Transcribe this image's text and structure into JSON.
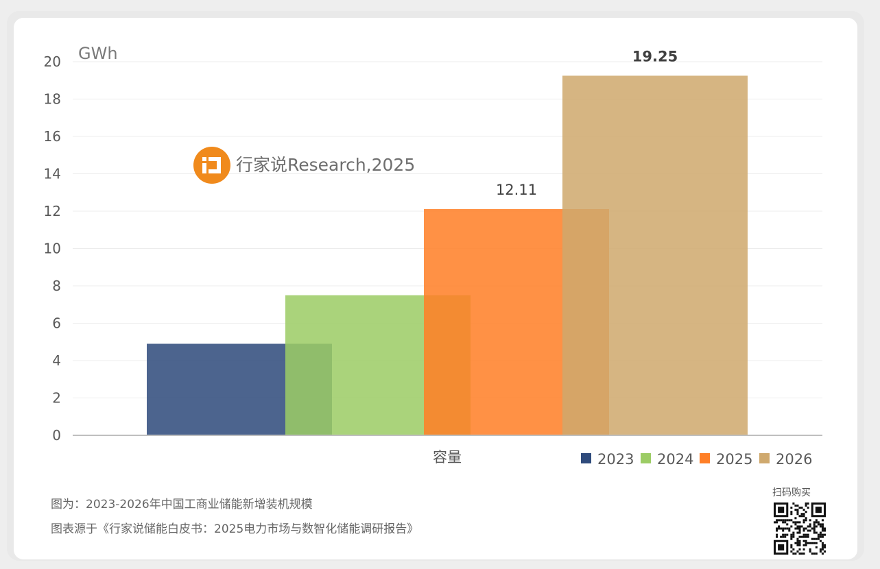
{
  "chart_data": {
    "type": "bar",
    "unit": "GWh",
    "categories": [
      "容量"
    ],
    "series": [
      {
        "name": "2023",
        "values": [
          4.9
        ],
        "color": "#2f4b7c"
      },
      {
        "name": "2024",
        "values": [
          7.5
        ],
        "color": "#9ccc65"
      },
      {
        "name": "2025",
        "values": [
          12.11
        ],
        "color": "#ff7f27"
      },
      {
        "name": "2026",
        "values": [
          19.25
        ],
        "color": "#cfa96e"
      }
    ],
    "data_labels": [
      {
        "series": "2025",
        "text": "12.11"
      },
      {
        "series": "2026",
        "text": "19.25"
      }
    ],
    "ylim": [
      0,
      20
    ],
    "yticks": [
      "0",
      "2",
      "4",
      "6",
      "8",
      "10",
      "12",
      "14",
      "16",
      "18",
      "20"
    ],
    "grid": true,
    "legend_position": "bottom-right"
  },
  "watermark": {
    "text": "行家说Research,2025",
    "icon": "brand-logo-icon",
    "color": "#f08a1c"
  },
  "captions": {
    "line1": "图为：2023-2026年中国工商业储能新增装机规模",
    "line2": "图表源于《行家说储能白皮书：2025电力市场与数智化储能调研报告》"
  },
  "qr": {
    "label": "扫码购买",
    "icon": "qr-code-icon"
  }
}
